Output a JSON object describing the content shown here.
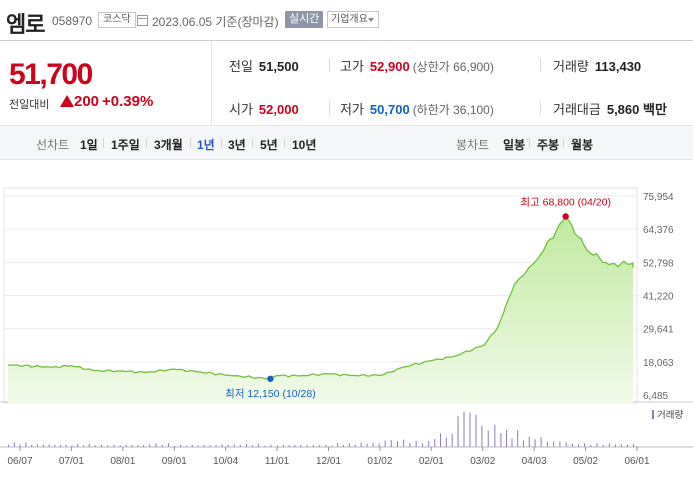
{
  "header": {
    "stock_name": "엠로",
    "stock_code": "058970",
    "market": "코스닥",
    "date_text": "2023.06.05  기준(장마감)",
    "realtime_label": "실시간",
    "company_label": "기업개요"
  },
  "quote": {
    "current_price": "51,700",
    "change_label": "전일대비",
    "change_value": "200",
    "change_rate": "+0.39%",
    "prev_close_label": "전일",
    "prev_close": "51,500",
    "open_label": "시가",
    "open": "52,000",
    "high_label": "고가",
    "high": "52,900",
    "upper_limit": "(상한가 66,900)",
    "low_label": "저가",
    "low": "50,700",
    "lower_limit": "(하한가 36,100)",
    "volume_label": "거래량",
    "volume": "113,430",
    "amount_label": "거래대금",
    "amount": "5,860 백만"
  },
  "periods": {
    "line_title": "선차트",
    "line_items": [
      "1일",
      "1주일",
      "3개월",
      "1년",
      "3년",
      "5년",
      "10년"
    ],
    "active_index": 3,
    "candle_title": "봉차트",
    "candle_items": [
      "일봉",
      "주봉",
      "월봉"
    ]
  },
  "colors": {
    "up": "#d0021b",
    "down": "#1262c4",
    "line": "#6fc23a",
    "fill_top": "#bfe9a0",
    "fill_bottom": "#f2fbe9",
    "volume": "#8c7cb8"
  },
  "chart_data": {
    "type": "area",
    "title": "",
    "xlabel": "",
    "ylabel": "",
    "x_ticks": [
      "06/07",
      "07/01",
      "08/01",
      "09/01",
      "10/04",
      "11/01",
      "12/01",
      "01/02",
      "02/01",
      "03/02",
      "04/03",
      "05/02",
      "06/01"
    ],
    "y_ticks": [
      "75,954",
      "64,376",
      "52,798",
      "41,220",
      "29,641",
      "18,063",
      "6,485"
    ],
    "ylim": [
      6485,
      75954
    ],
    "max_label": "최고 68,800 (04/20)",
    "max_value": 68800,
    "min_label": "최저 12,150 (10/28)",
    "min_value": 12150,
    "volume_label": "거래량",
    "x": [
      "06/07",
      "06/20",
      "07/01",
      "07/15",
      "08/01",
      "08/15",
      "09/01",
      "09/15",
      "10/04",
      "10/28",
      "11/01",
      "11/15",
      "12/01",
      "12/15",
      "01/02",
      "01/15",
      "02/01",
      "02/15",
      "03/02",
      "03/10",
      "03/20",
      "04/03",
      "04/20",
      "05/02",
      "05/15",
      "06/01",
      "06/05"
    ],
    "values": [
      17000,
      16200,
      16700,
      15000,
      14800,
      14400,
      15500,
      14600,
      13300,
      12150,
      13300,
      13200,
      13900,
      13300,
      13400,
      16200,
      18500,
      20000,
      24000,
      30000,
      45000,
      54000,
      68800,
      57000,
      52000,
      52500,
      51700
    ],
    "volumes": [
      6,
      4,
      3,
      4,
      3,
      3,
      5,
      3,
      3,
      4,
      4,
      3,
      3,
      3,
      5,
      6,
      10,
      8,
      18,
      52,
      30,
      22,
      14,
      8,
      5,
      5,
      4
    ]
  }
}
